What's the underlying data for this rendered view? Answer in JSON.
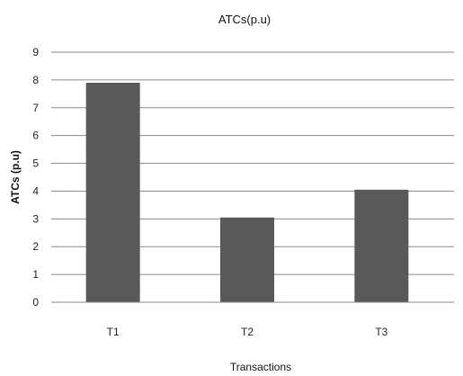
{
  "chart_data": {
    "type": "bar",
    "title": "ATCs(p.u)",
    "xlabel": "Transactions",
    "ylabel": "ATCs (p.u)",
    "categories": [
      "T1",
      "T2",
      "T3"
    ],
    "values": [
      7.9,
      3.05,
      4.05
    ],
    "ylim": [
      0,
      9
    ],
    "yticks": [
      "0",
      "1",
      "2",
      "3",
      "4",
      "5",
      "6",
      "7",
      "8",
      "9"
    ],
    "grid": true,
    "legend": "none",
    "bar_color": "#595959"
  }
}
